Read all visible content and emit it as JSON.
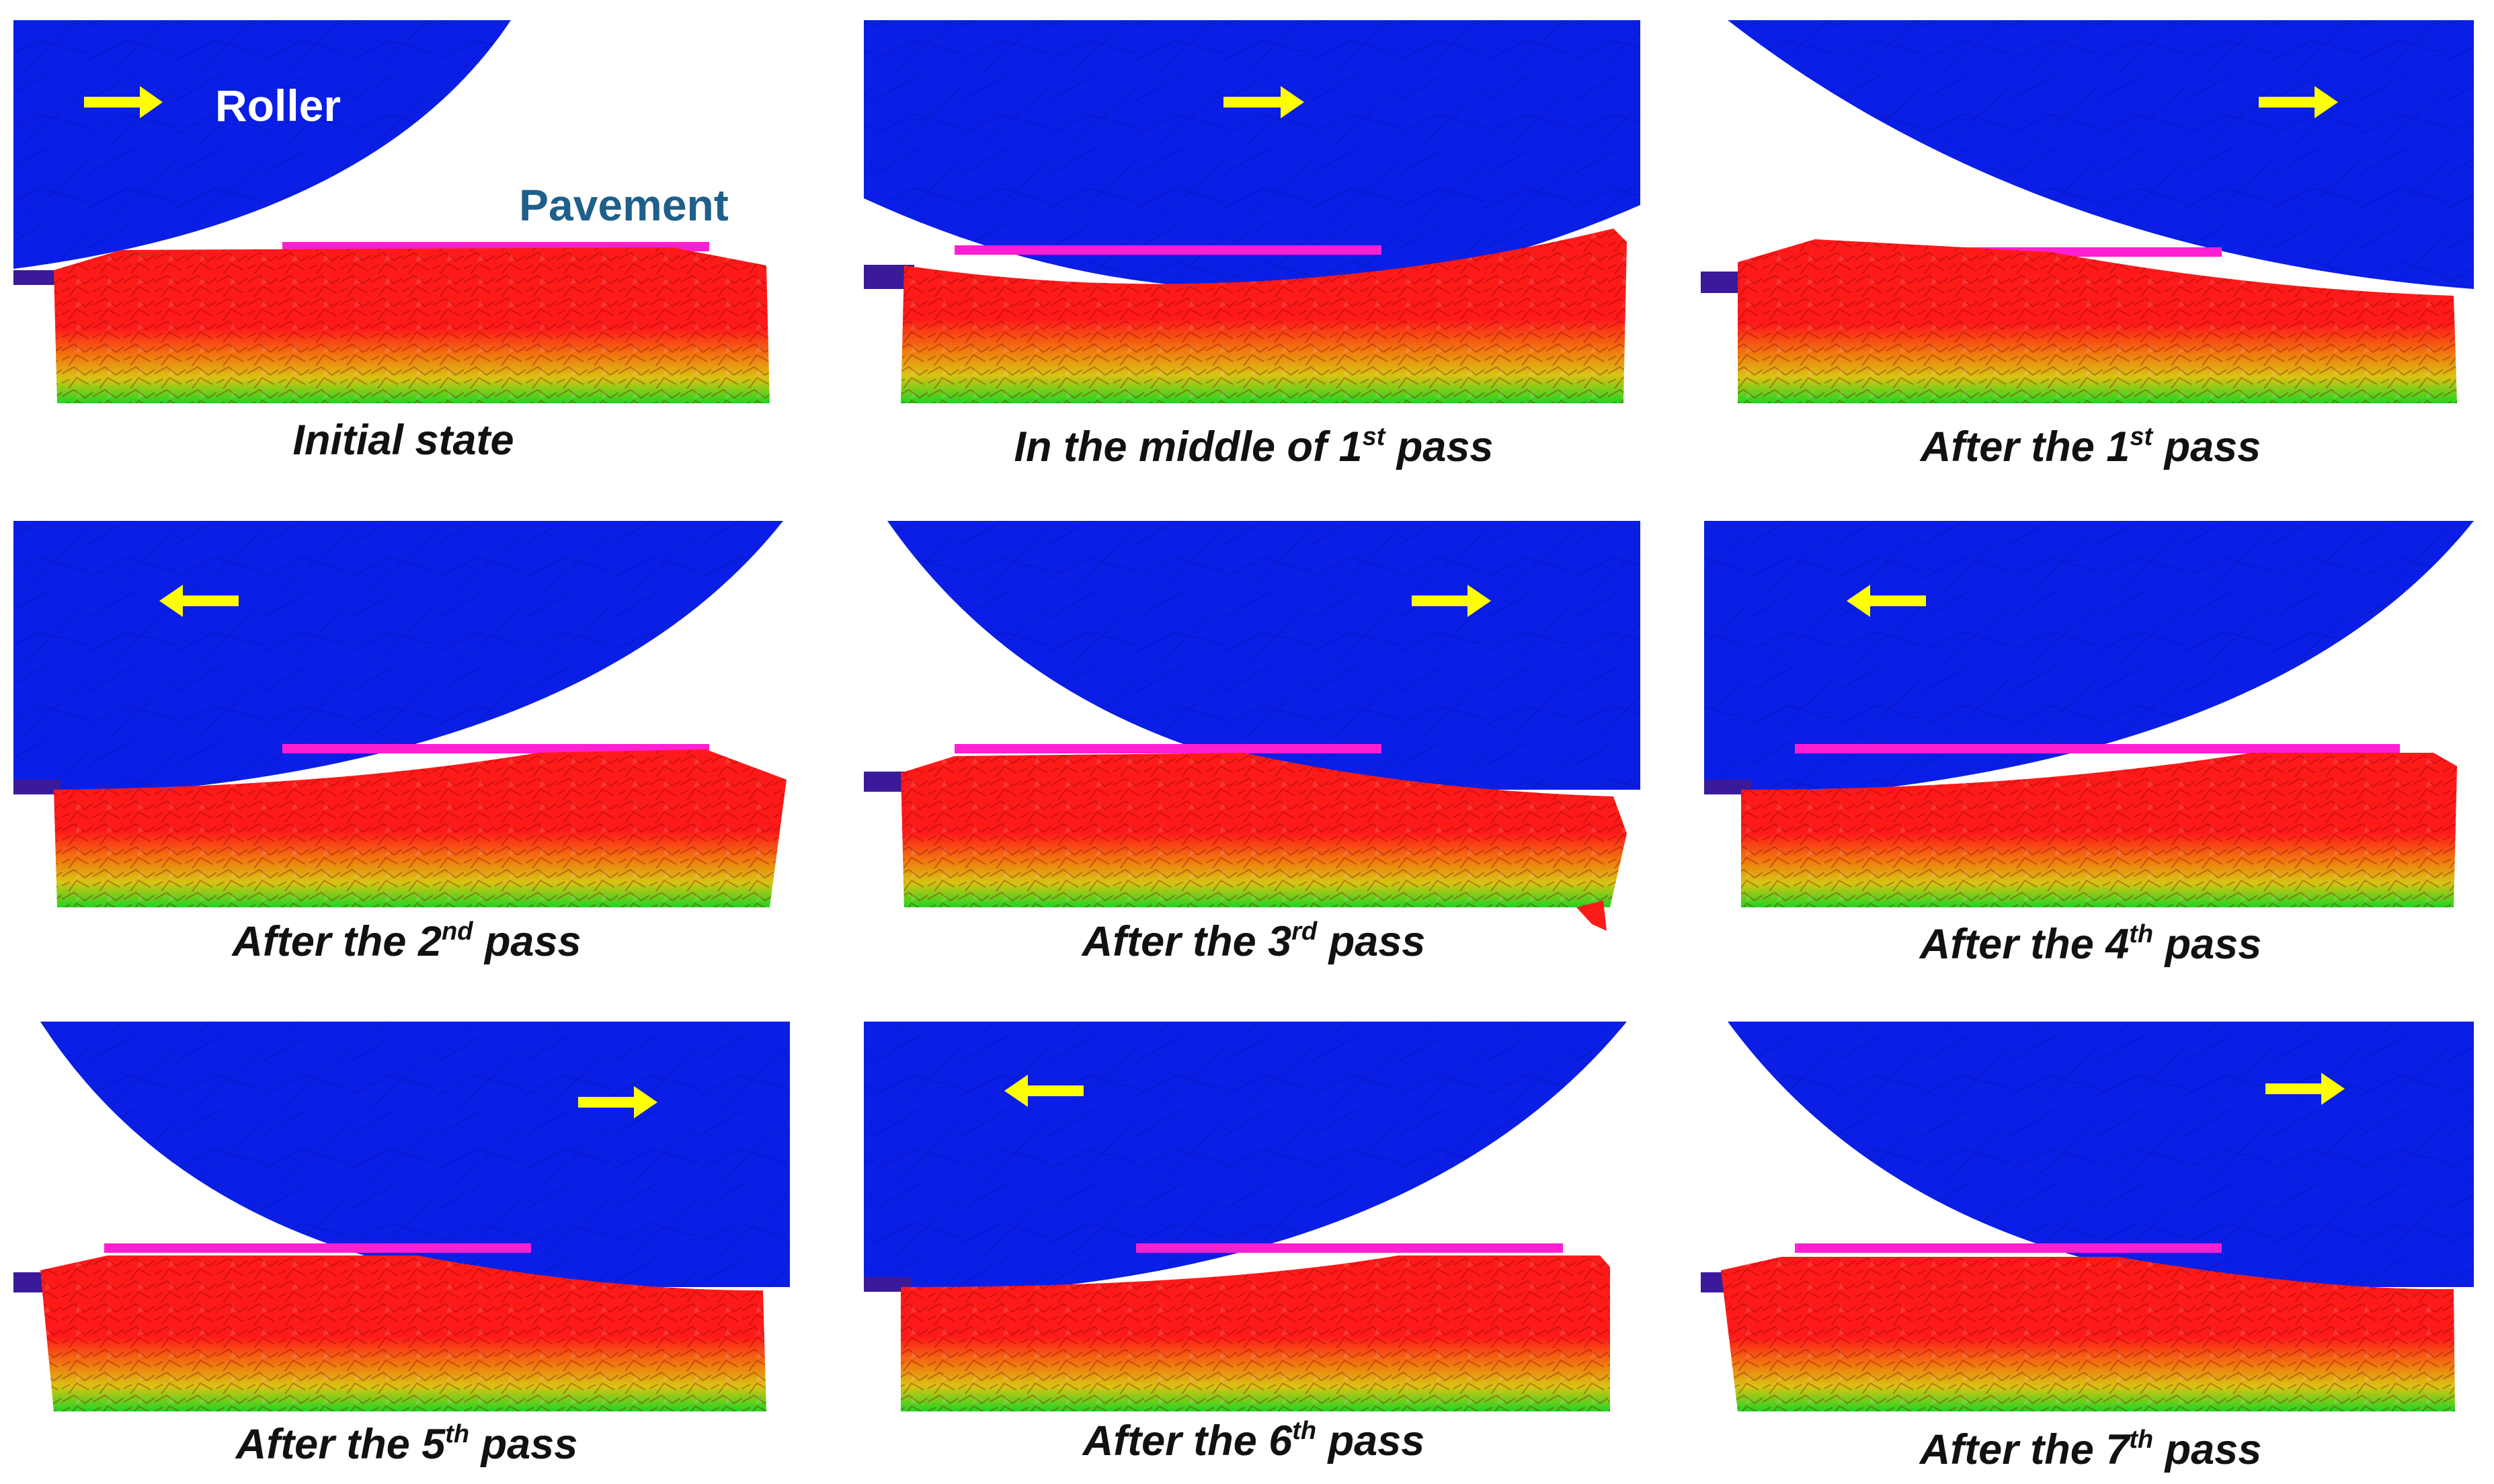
{
  "labels": {
    "roller": "Roller",
    "pavement": "Pavement"
  },
  "panels": [
    {
      "caption_main": "Initial state",
      "caption_sup": "",
      "caption_tail": "",
      "direction": "right"
    },
    {
      "caption_main": "In the middle of 1",
      "caption_sup": "st",
      "caption_tail": " pass",
      "direction": "right"
    },
    {
      "caption_main": "After the 1",
      "caption_sup": "st",
      "caption_tail": " pass",
      "direction": "right"
    },
    {
      "caption_main": "After the 2",
      "caption_sup": "nd",
      "caption_tail": " pass",
      "direction": "left"
    },
    {
      "caption_main": "After the 3",
      "caption_sup": "rd",
      "caption_tail": " pass",
      "direction": "right"
    },
    {
      "caption_main": "After the 4",
      "caption_sup": "th",
      "caption_tail": " pass",
      "direction": "left"
    },
    {
      "caption_main": "After the 5",
      "caption_sup": "th",
      "caption_tail": " pass",
      "direction": "right"
    },
    {
      "caption_main": "After the 6",
      "caption_sup": "th",
      "caption_tail": " pass",
      "direction": "left"
    },
    {
      "caption_main": "After the 7",
      "caption_sup": "th",
      "caption_tail": " pass",
      "direction": "right"
    }
  ],
  "colors": {
    "roller": "#0a1ee6",
    "pavement_top": "#ff1a1a",
    "pavement_mid": "#f07a10",
    "pavement_low": "#d8c414",
    "pavement_base": "#22d422",
    "mold": "#ff1fd2",
    "plate": "#3a1a9a",
    "arrow": "#ffff00"
  }
}
